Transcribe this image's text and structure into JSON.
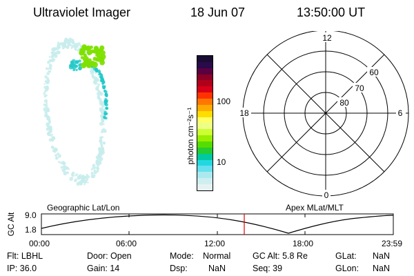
{
  "header": {
    "instrument": "Ultraviolet Imager",
    "date": "18 Jun 07",
    "time": "13:50:00 UT"
  },
  "colorbar": {
    "unit_label": "photon cm⁻²s⁻¹",
    "ticks": [
      "100",
      "10"
    ],
    "colors": [
      "#1a0d33",
      "#2a0a4a",
      "#5a0040",
      "#8b0025",
      "#b0001a",
      "#d80018",
      "#ff3300",
      "#ff7700",
      "#ffaa00",
      "#ffdd00",
      "#ffff66",
      "#eeff88",
      "#ccff33",
      "#99ee00",
      "#55dd00",
      "#22cc33",
      "#00c8a0",
      "#22d8e0",
      "#66e0ee",
      "#aaeaee",
      "#cfeef0",
      "#e6f2f2"
    ]
  },
  "polar_plot": {
    "mlt_labels": {
      "top": "12",
      "left": "18",
      "right": "6",
      "bottom": "0"
    },
    "lat_labels": [
      "60",
      "70",
      "80"
    ]
  },
  "timeline": {
    "left_title": "Geographic Lat/Lon",
    "right_title": "Apex MLat/MLT",
    "y_axis_label": "GC Alt",
    "y_ticks": [
      "9.0",
      "1.8"
    ],
    "x_ticks": [
      "00:00",
      "06:00",
      "12:00",
      "18:00",
      "23:59"
    ],
    "current_time_marker": "13:50"
  },
  "status": {
    "flt": "Flt: LBHL",
    "ip": "IP: 36.0",
    "door": "Door: Open",
    "gain": "Gain: 14",
    "mode_label": "Mode:",
    "mode_value": "Normal",
    "dsp_label": "Dsp:",
    "dsp_value": "NaN",
    "gcalt": "GC Alt: 5.8 Re",
    "seq": "Seq: 39",
    "glat_label": "GLat:",
    "glat_value": "NaN",
    "glon_label": "GLon:",
    "glon_value": "NaN"
  },
  "colors": {
    "marker": "#dd0000",
    "aurora_bright": "#7ee000",
    "aurora_mid": "#22c8c8",
    "aurora_faint": "#c8ecec"
  }
}
